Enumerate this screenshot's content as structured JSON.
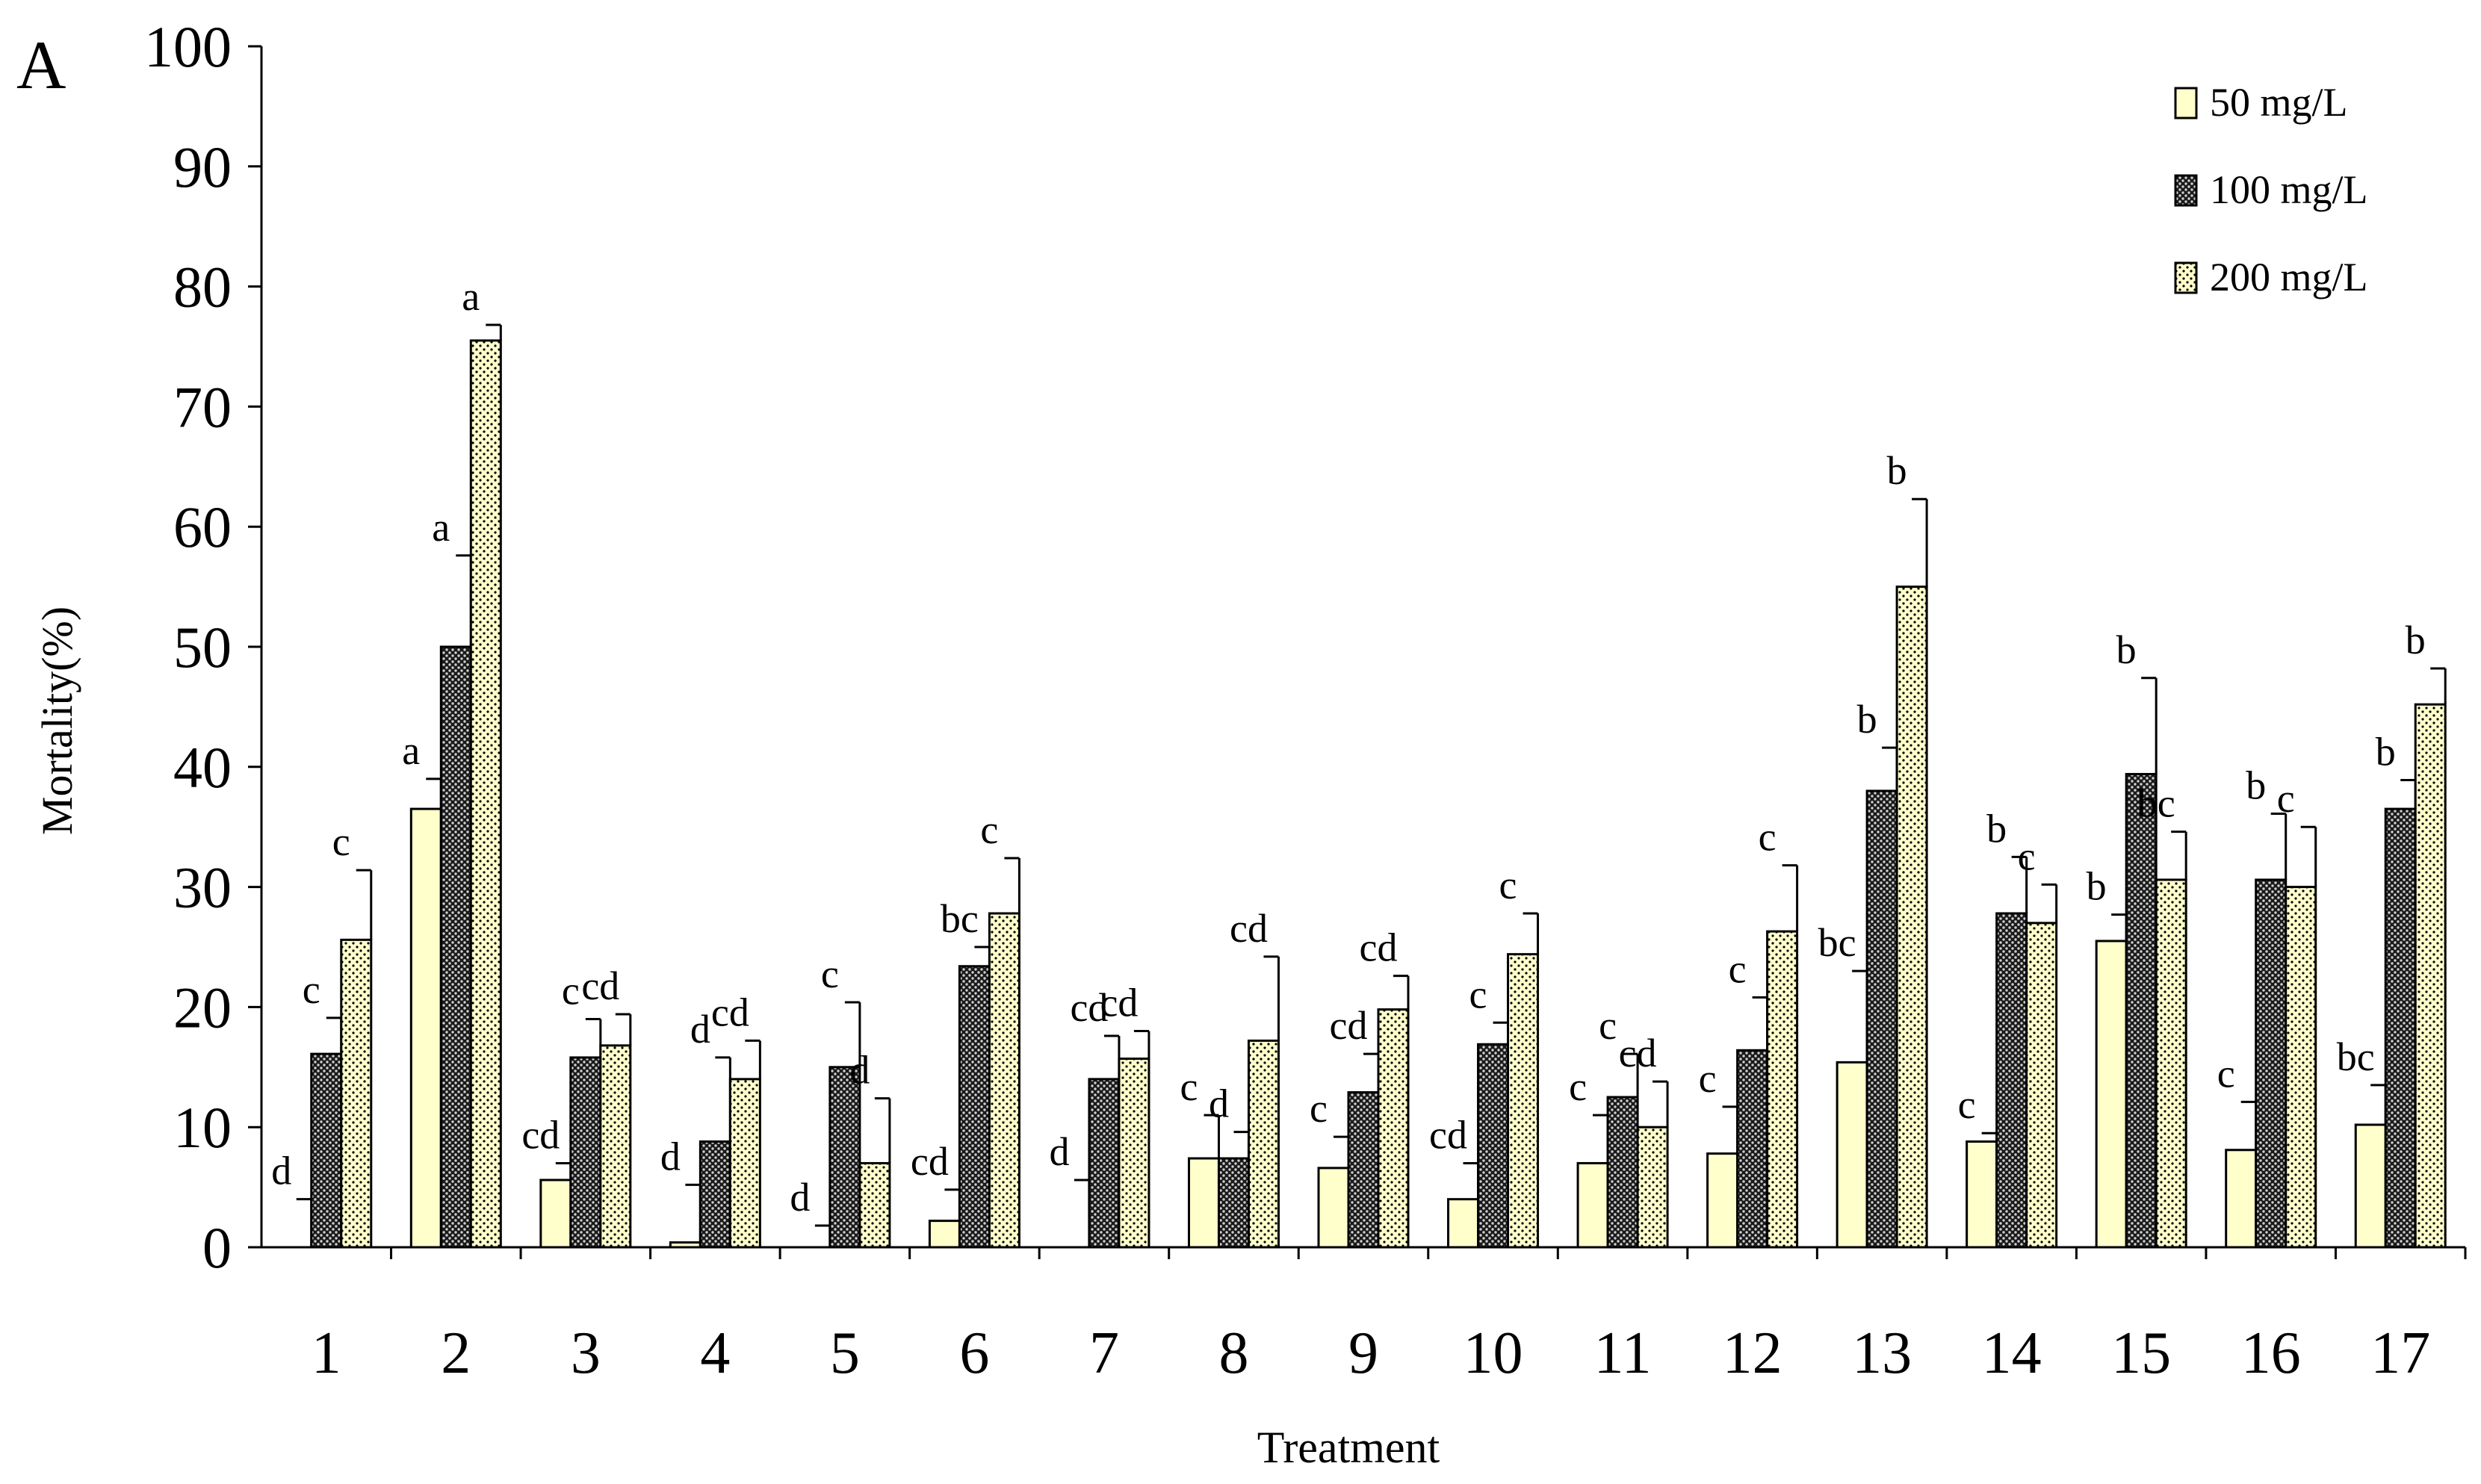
{
  "panel_label": "A",
  "colors": {
    "series_fill_50": "#ffffcc",
    "series_fill_100": "#1a1a1a",
    "series_fill_200": "#ffffcc",
    "outline": "#000000"
  },
  "chart_data": {
    "type": "bar",
    "title": "",
    "xlabel": "Treatment",
    "ylabel": "Mortality(%)",
    "ylim": [
      0,
      100
    ],
    "yticks": [
      0,
      10,
      20,
      30,
      40,
      50,
      60,
      70,
      80,
      90,
      100
    ],
    "grid": false,
    "legend_position": "top-right",
    "categories": [
      "1",
      "2",
      "3",
      "4",
      "5",
      "6",
      "7",
      "8",
      "9",
      "10",
      "11",
      "12",
      "13",
      "14",
      "15",
      "16",
      "17"
    ],
    "series": [
      {
        "name": "50 mg/L",
        "pattern": "plain",
        "values": [
          0,
          36.5,
          5.6,
          0.4,
          0,
          2.2,
          0,
          7.4,
          6.6,
          4.0,
          7.0,
          7.8,
          15.4,
          8.8,
          25.5,
          8.1,
          10.2
        ],
        "errors": [
          4.0,
          2.5,
          1.4,
          4.8,
          1.8,
          2.6,
          5.6,
          3.6,
          2.6,
          3.0,
          4.0,
          3.9,
          7.6,
          0.7,
          2.2,
          4.0,
          3.3
        ],
        "letters": [
          "d",
          "a",
          "cd",
          "d",
          "d",
          "cd",
          "d",
          "c",
          "c",
          "cd",
          "c",
          "c",
          "bc",
          "c",
          "b",
          "c",
          "bc"
        ]
      },
      {
        "name": "100 mg/L",
        "pattern": "crosshatch",
        "values": [
          16.1,
          50.0,
          15.8,
          8.8,
          15.0,
          23.4,
          14.0,
          7.4,
          12.9,
          16.9,
          12.5,
          16.4,
          38.0,
          27.8,
          39.4,
          30.6,
          36.5
        ],
        "errors": [
          3.0,
          7.6,
          3.2,
          7.0,
          5.4,
          1.6,
          3.6,
          2.2,
          3.2,
          1.8,
          3.6,
          4.4,
          3.6,
          4.7,
          8.0,
          5.5,
          2.4
        ],
        "letters": [
          "c",
          "a",
          "c",
          "d",
          "c",
          "bc",
          "cd",
          "d",
          "cd",
          "c",
          "c",
          "c",
          "b",
          "b",
          "b",
          "b",
          "b"
        ]
      },
      {
        "name": "200 mg/L",
        "pattern": "dotted",
        "values": [
          25.6,
          75.5,
          16.8,
          14.0,
          7.0,
          27.8,
          15.7,
          17.2,
          19.8,
          24.4,
          10.0,
          26.3,
          55.0,
          27.0,
          30.6,
          30.0,
          45.2
        ],
        "errors": [
          5.8,
          1.3,
          2.6,
          3.2,
          5.4,
          4.6,
          2.3,
          7.0,
          2.8,
          3.4,
          3.8,
          5.5,
          7.3,
          3.2,
          4.0,
          5.0,
          3.0
        ],
        "letters": [
          "c",
          "a",
          "cd",
          "cd",
          "d",
          "c",
          "cd",
          "cd",
          "cd",
          "c",
          "cd",
          "c",
          "b",
          "c",
          "bc",
          "c",
          "b"
        ]
      }
    ]
  }
}
